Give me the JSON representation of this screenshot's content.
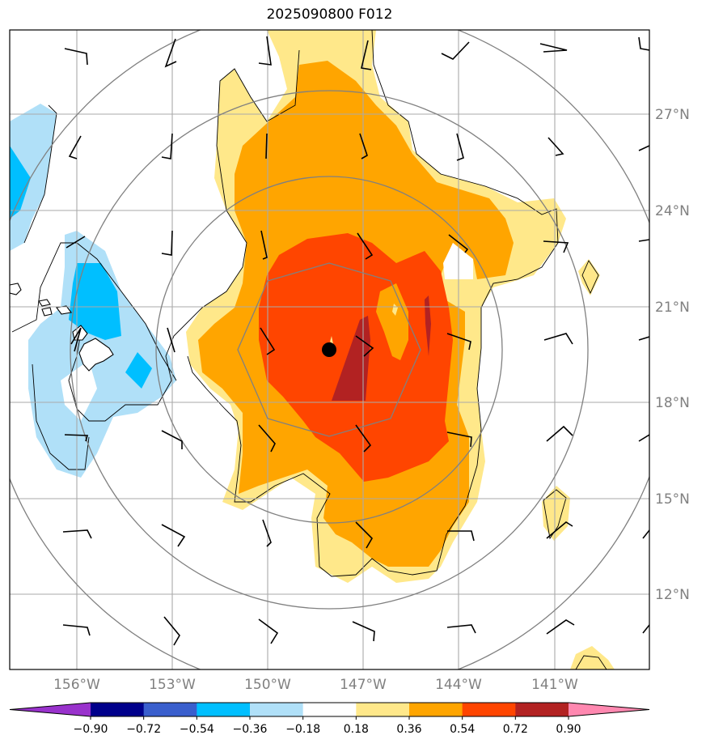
{
  "title": "2025090800 F012",
  "map": {
    "lat_ticks": [
      "27°N",
      "24°N",
      "21°N",
      "18°N",
      "15°N",
      "12°N"
    ],
    "lon_ticks": [
      "156°W",
      "153°W",
      "150°W",
      "147°W",
      "144°W",
      "141°W"
    ],
    "storm_center": {
      "lat": 19.6,
      "lon": "148.2W"
    }
  },
  "colorbar": {
    "ticks": [
      "−0.90",
      "−0.72",
      "−0.54",
      "−0.36",
      "−0.18",
      "0.18",
      "0.36",
      "0.54",
      "0.72",
      "0.90"
    ],
    "colors": [
      "#9932cc",
      "#00008b",
      "#3a5fcd",
      "#00bfff",
      "#b0e0f8",
      "#ffffff",
      "#ffe88a",
      "#ffa500",
      "#ff4500",
      "#b22222",
      "#ff88b0"
    ]
  }
}
